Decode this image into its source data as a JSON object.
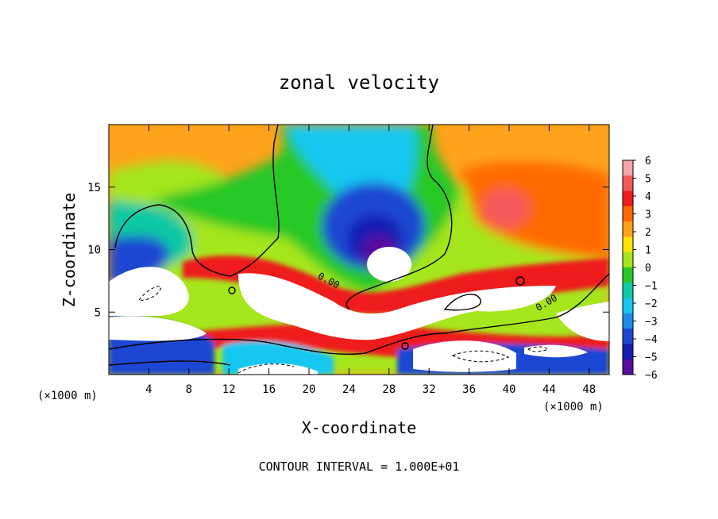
{
  "chart_data": {
    "type": "heatmap",
    "title": "zonal velocity",
    "xlabel": "X-coordinate",
    "ylabel": "Z-coordinate",
    "x_unit_left": "(×1000 m)",
    "x_unit_right": "(×1000 m)",
    "footer": "CONTOUR INTERVAL = 1.000E+01",
    "xlim": [
      0,
      50
    ],
    "ylim": [
      0,
      20
    ],
    "x_ticks": [
      4,
      8,
      12,
      16,
      20,
      24,
      28,
      32,
      36,
      40,
      44,
      48
    ],
    "y_ticks": [
      5,
      10,
      15
    ],
    "contour_labels": [
      "0.00",
      "0.00"
    ],
    "colorbar": {
      "min": -6,
      "max": 6,
      "tick_labels": [
        "6",
        "5",
        "4",
        "3",
        "2",
        "1",
        "0",
        "−1",
        "−2",
        "−3",
        "−4",
        "−5",
        "−6"
      ],
      "colors": [
        "#f4a6a6",
        "#f55a5a",
        "#ee1c1c",
        "#ff6a00",
        "#ffa21b",
        "#ffe400",
        "#a6e61b",
        "#28c828",
        "#0fc8a4",
        "#14c8f0",
        "#1e8ce6",
        "#1e46d2",
        "#141eb4",
        "#5a0a9c"
      ]
    },
    "grid": false,
    "legend": "colorbar-right"
  }
}
